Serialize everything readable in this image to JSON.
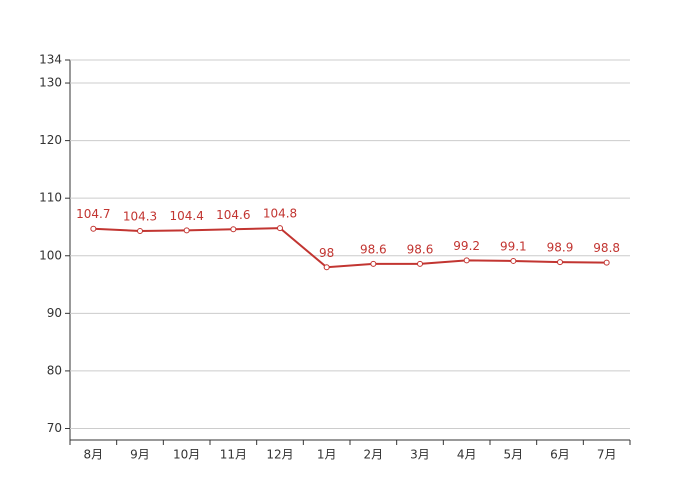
{
  "chart_data": {
    "type": "line",
    "categories": [
      "8月",
      "9月",
      "10月",
      "11月",
      "12月",
      "1月",
      "2月",
      "3月",
      "4月",
      "5月",
      "6月",
      "7月"
    ],
    "values": [
      104.7,
      104.3,
      104.4,
      104.6,
      104.8,
      98,
      98.6,
      98.6,
      99.2,
      99.1,
      98.9,
      98.8
    ],
    "color": "#c23531",
    "ylim": [
      68,
      134
    ],
    "yticks": [
      70,
      80,
      90,
      100,
      110,
      120,
      130,
      134
    ],
    "grid": true
  }
}
